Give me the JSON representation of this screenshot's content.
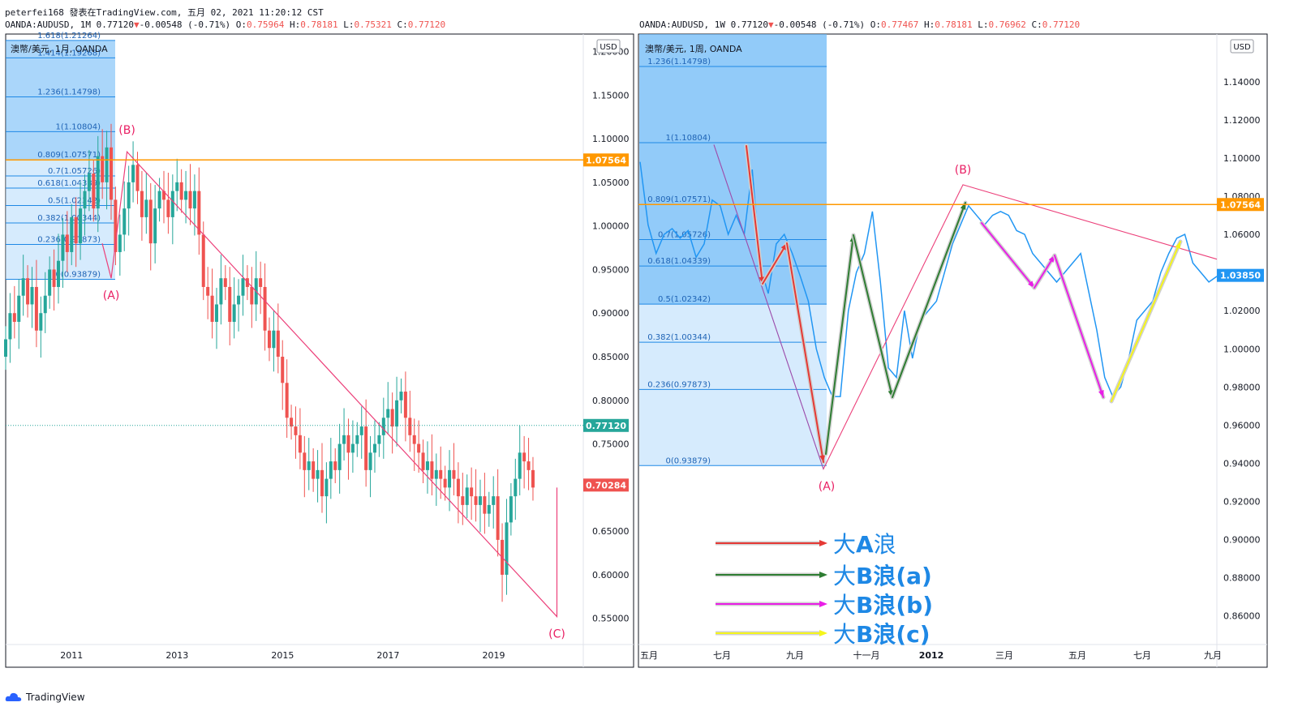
{
  "header": {
    "line1": "peterfei168 發表在TradingView.com, 五月 02, 2021 11:20:12 CST",
    "left_line2": {
      "symbol": "OANDA:AUDUSD, 1M 0.77120",
      "change": "-0.00548 (-0.71%)",
      "o": "0.75964",
      "h": "0.78181",
      "l": "0.75321",
      "c": "0.77120"
    },
    "right_line2": {
      "symbol": "OANDA:AUDUSD, 1W 0.77120",
      "change": "-0.00548 (-0.71%)",
      "o": "0.77467",
      "h": "0.78181",
      "l": "0.76962",
      "c": "0.77120"
    }
  },
  "footer": {
    "logo": "TradingView"
  },
  "colors": {
    "up": "#26a69a",
    "down": "#ef5350",
    "line": "#2196f3",
    "accent": "#ff9800",
    "pink": "#e91e63",
    "fib_fill": "#bbdefb",
    "fib_fill_dark": "#64b5f6"
  },
  "chart_data": [
    {
      "type": "candlestick",
      "title": "澳幣/美元, 1月, OANDA",
      "currency": "USD",
      "ylim": [
        0.52,
        1.22
      ],
      "y_ticks": [
        "1.20000",
        "1.15000",
        "1.10000",
        "1.05000",
        "1.00000",
        "0.95000",
        "0.90000",
        "0.85000",
        "0.80000",
        "0.75000",
        "0.70000",
        "0.65000",
        "0.60000",
        "0.55000"
      ],
      "x_ticks": [
        "2011",
        "2013",
        "2015",
        "2017",
        "2019"
      ],
      "price_labels": [
        {
          "value": 1.07564,
          "text": "1.07564",
          "color": "#ff9800"
        },
        {
          "value": 0.7712,
          "text": "0.77120",
          "color": "#26a69a"
        },
        {
          "value": 0.70284,
          "text": "0.70284",
          "color": "#ef5350"
        }
      ],
      "fib_levels": [
        {
          "ratio": "1.618",
          "price": "1.21264",
          "value": 1.21264
        },
        {
          "ratio": "1.414",
          "price": "1.19268",
          "value": 1.19268
        },
        {
          "ratio": "1.236",
          "price": "1.14798",
          "value": 1.14798
        },
        {
          "ratio": "1",
          "price": "1.10804",
          "value": 1.10804
        },
        {
          "ratio": "0.809",
          "price": "1.07571",
          "value": 1.07571
        },
        {
          "ratio": "0.7",
          "price": "1.05726",
          "value": 1.05726
        },
        {
          "ratio": "0.618",
          "price": "1.04339",
          "value": 1.04339
        },
        {
          "ratio": "0.5",
          "price": "1.02342",
          "value": 1.02342
        },
        {
          "ratio": "0.382",
          "price": "1.00344",
          "value": 1.00344
        },
        {
          "ratio": "0.236",
          "price": "0.97873",
          "value": 0.97873
        },
        {
          "ratio": "0",
          "price": "0.93879",
          "value": 0.93879
        }
      ],
      "waves": [
        {
          "label": "(A)",
          "x": 2011.75,
          "value": 0.94
        },
        {
          "label": "(B)",
          "x": 2012.05,
          "value": 1.085
        },
        {
          "label": "(C)",
          "x": 2020.2,
          "value": 0.552
        }
      ],
      "close_series": {
        "start": 2009.75,
        "step": 0.0833,
        "values": [
          0.87,
          0.9,
          0.89,
          0.92,
          0.94,
          0.91,
          0.93,
          0.88,
          0.9,
          0.92,
          0.95,
          0.93,
          0.96,
          0.99,
          0.97,
          1.01,
          0.98,
          1.02,
          1.04,
          1.06,
          1.02,
          1.08,
          1.05,
          1.09,
          1.03,
          0.97,
          0.99,
          1.02,
          1.05,
          1.07,
          1.04,
          1.01,
          1.03,
          0.98,
          1.02,
          1.04,
          1.03,
          1.01,
          1.04,
          1.05,
          1.03,
          1.04,
          1.02,
          1.04,
          0.99,
          0.93,
          0.92,
          0.89,
          0.91,
          0.94,
          0.93,
          0.89,
          0.91,
          0.92,
          0.94,
          0.93,
          0.91,
          0.94,
          0.93,
          0.88,
          0.86,
          0.88,
          0.85,
          0.82,
          0.78,
          0.77,
          0.76,
          0.74,
          0.72,
          0.73,
          0.71,
          0.72,
          0.69,
          0.71,
          0.73,
          0.72,
          0.75,
          0.76,
          0.74,
          0.75,
          0.76,
          0.77,
          0.72,
          0.74,
          0.75,
          0.76,
          0.78,
          0.79,
          0.77,
          0.8,
          0.81,
          0.78,
          0.76,
          0.75,
          0.74,
          0.72,
          0.73,
          0.71,
          0.72,
          0.71,
          0.7,
          0.72,
          0.71,
          0.69,
          0.68,
          0.7,
          0.69,
          0.68,
          0.69,
          0.67,
          0.68,
          0.69,
          0.64,
          0.6,
          0.66,
          0.69,
          0.71,
          0.74,
          0.73,
          0.72,
          0.7
        ]
      }
    },
    {
      "type": "line",
      "title": "澳幣/美元, 1周, OANDA",
      "currency": "USD",
      "ylim": [
        0.845,
        1.165
      ],
      "y_ticks": [
        "1.14000",
        "1.12000",
        "1.10000",
        "1.08000",
        "1.06000",
        "1.04000",
        "1.02000",
        "1.00000",
        "0.98000",
        "0.96000",
        "0.94000",
        "0.92000",
        "0.90000",
        "0.88000",
        "0.86000"
      ],
      "x_ticks": [
        "五月",
        "七月",
        "九月",
        "十一月",
        "2012",
        "三月",
        "五月",
        "七月",
        "九月"
      ],
      "price_labels": [
        {
          "value": 1.07564,
          "text": "1.07564",
          "color": "#ff9800"
        },
        {
          "value": 1.0385,
          "text": "1.03850",
          "color": "#2196f3"
        }
      ],
      "fib_levels": [
        {
          "ratio": "1.236",
          "price": "1.14798",
          "value": 1.14798
        },
        {
          "ratio": "1",
          "price": "1.10804",
          "value": 1.10804
        },
        {
          "ratio": "0.809",
          "price": "1.07571",
          "value": 1.07571
        },
        {
          "ratio": "0.7",
          "price": "1.05726",
          "value": 1.05726
        },
        {
          "ratio": "0.618",
          "price": "1.04339",
          "value": 1.04339
        },
        {
          "ratio": "0.5",
          "price": "1.02342",
          "value": 1.02342
        },
        {
          "ratio": "0.382",
          "price": "1.00344",
          "value": 1.00344
        },
        {
          "ratio": "0.236",
          "price": "0.97873",
          "value": 0.97873
        },
        {
          "ratio": "0",
          "price": "0.93879",
          "value": 0.93879
        }
      ],
      "waves": [
        {
          "label": "(A)",
          "x": 25,
          "value": 0.937
        },
        {
          "label": "(B)",
          "x": 44,
          "value": 1.086
        }
      ],
      "close_series": {
        "start": 0,
        "step": 1,
        "values": [
          1.098,
          1.065,
          1.05,
          1.06,
          1.063,
          1.058,
          1.062,
          1.048,
          1.055,
          1.078,
          1.075,
          1.06,
          1.07,
          1.06,
          1.094,
          1.043,
          1.029,
          1.055,
          1.06,
          1.05,
          1.038,
          1.025,
          1.0,
          0.985,
          0.975,
          0.975,
          1.02,
          1.04,
          1.05,
          1.072,
          1.035,
          0.99,
          0.985,
          1.02,
          0.995,
          1.015,
          1.02,
          1.025,
          1.04,
          1.055,
          1.065,
          1.075,
          1.07,
          1.065,
          1.07,
          1.072,
          1.07,
          1.062,
          1.06,
          1.05,
          1.045,
          1.04,
          1.035,
          1.04,
          1.045,
          1.05,
          1.03,
          1.01,
          0.985,
          0.975,
          0.98,
          0.995,
          1.015,
          1.02,
          1.025,
          1.04,
          1.05,
          1.058,
          1.06,
          1.045,
          1.04,
          1.035,
          1.038
        ]
      }
    }
  ],
  "wave_arrows": [
    {
      "name": "red",
      "color": "#e53935",
      "label_big": "大",
      "label_bold": "A",
      "label_end": "浪",
      "pts": [
        [
          920,
          180
        ],
        [
          940,
          350
        ],
        [
          970,
          300
        ],
        [
          1015,
          570
        ]
      ]
    },
    {
      "name": "green",
      "color": "#2e7d32",
      "label_big": "大",
      "label_bold": "B",
      "label_end": "浪(a)",
      "pts": [
        [
          1018,
          560
        ],
        [
          1052,
          290
        ],
        [
          1100,
          490
        ],
        [
          1190,
          250
        ]
      ]
    },
    {
      "name": "magenta",
      "color": "#e91ee6",
      "label_big": "大",
      "label_bold": "B",
      "label_end": "浪(b)",
      "pts": [
        [
          1210,
          275
        ],
        [
          1275,
          355
        ],
        [
          1300,
          315
        ],
        [
          1360,
          490
        ]
      ]
    },
    {
      "name": "yellow",
      "color": "#f5f51a",
      "label_big": "大",
      "label_bold": "B",
      "label_end": "浪(c)",
      "pts": [
        [
          1370,
          495
        ],
        [
          1455,
          298
        ]
      ]
    }
  ]
}
